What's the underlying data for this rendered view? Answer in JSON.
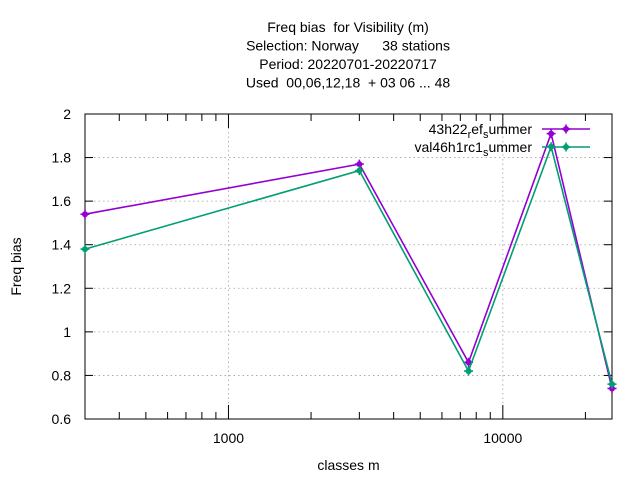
{
  "chart_data": {
    "type": "line",
    "title_lines": [
      "Freq bias  for Visibility (m)",
      "Selection: Norway      38 stations",
      "Period: 20220701-20220717",
      "Used  00,06,12,18  + 03 06 ... 48"
    ],
    "xlabel": "classes m",
    "ylabel": "Freq bias",
    "xscale": "log",
    "xlim": [
      300,
      25000
    ],
    "ylim": [
      0.6,
      2.0
    ],
    "x_ticks": [
      1000,
      10000
    ],
    "x_tick_labels": [
      "1000",
      "10000"
    ],
    "y_ticks": [
      0.6,
      0.8,
      1.0,
      1.2,
      1.4,
      1.6,
      1.8,
      2.0
    ],
    "y_tick_labels": [
      "0.6",
      "0.8",
      "1",
      "1.2",
      "1.4",
      "1.6",
      "1.8",
      "2"
    ],
    "grid": true,
    "legend_position": "top-right",
    "x": [
      300,
      3000,
      7500,
      15000,
      25000
    ],
    "series": [
      {
        "name_main": "43h22",
        "name_sub1": "r",
        "name_mid": "ef",
        "name_sub2": "s",
        "name_end": "ummer",
        "color": "#9400d3",
        "values": [
          1.54,
          1.77,
          0.86,
          1.91,
          0.74
        ]
      },
      {
        "name_main": "val46h1rc1",
        "name_sub1": "s",
        "name_mid": "",
        "name_sub2": "",
        "name_end": "ummer",
        "color": "#009e73",
        "values": [
          1.38,
          1.74,
          0.82,
          1.85,
          0.76
        ]
      }
    ]
  }
}
